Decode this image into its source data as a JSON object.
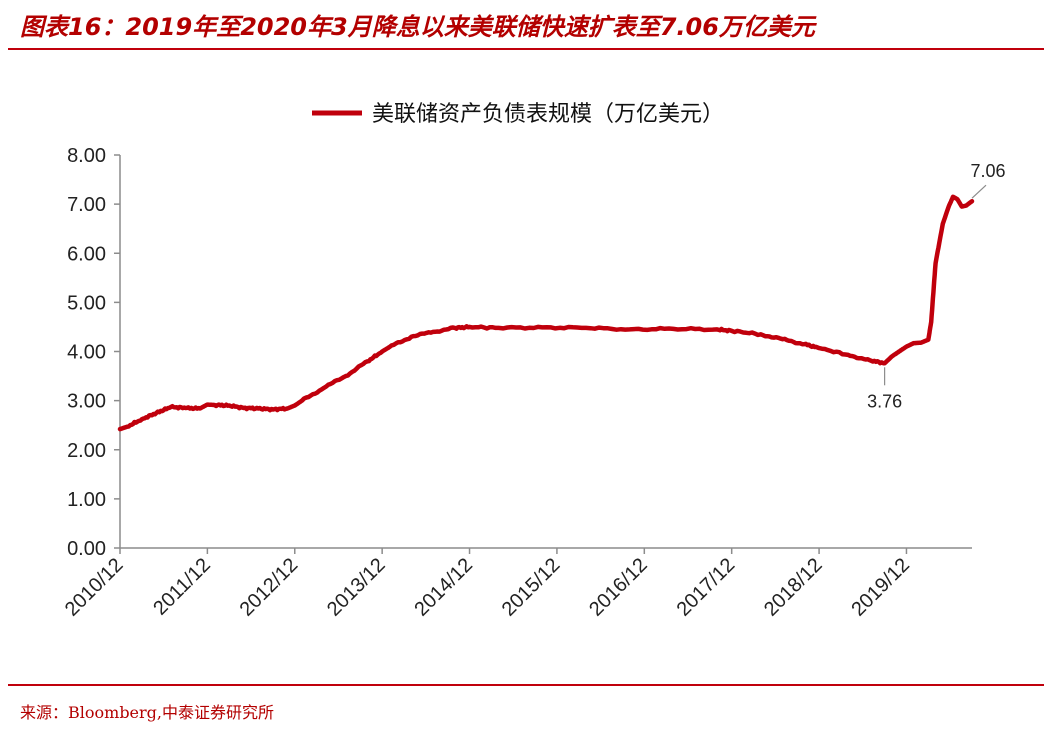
{
  "figure": {
    "title": "图表16：2019年至2020年3月降息以来美联储快速扩表至7.06万亿美元",
    "source": "来源：Bloomberg,中泰证券研究所",
    "accent_color": "#c0000c"
  },
  "chart_data": {
    "type": "line",
    "title": "",
    "xlabel": "",
    "ylabel": "",
    "ylim": [
      0,
      8
    ],
    "xlim": [
      2010.917,
      2020.667
    ],
    "y_ticks": [
      "0.00",
      "1.00",
      "2.00",
      "3.00",
      "4.00",
      "5.00",
      "6.00",
      "7.00",
      "8.00"
    ],
    "x_tick_labels": [
      "2010/12",
      "2011/12",
      "2012/12",
      "2013/12",
      "2014/12",
      "2015/12",
      "2016/12",
      "2017/12",
      "2018/12",
      "2019/12"
    ],
    "x_tick_values": [
      2010.917,
      2011.917,
      2012.917,
      2013.917,
      2014.917,
      2015.917,
      2016.917,
      2017.917,
      2018.917,
      2019.917
    ],
    "grid": false,
    "legend_position": "top-center",
    "series": [
      {
        "name": "美联储资产负债表规模（万亿美元）",
        "color": "#c0000c",
        "points": [
          [
            2010.917,
            2.42
          ],
          [
            2011.0,
            2.47
          ],
          [
            2011.167,
            2.62
          ],
          [
            2011.333,
            2.75
          ],
          [
            2011.5,
            2.87
          ],
          [
            2011.667,
            2.85
          ],
          [
            2011.833,
            2.84
          ],
          [
            2011.917,
            2.92
          ],
          [
            2012.0,
            2.91
          ],
          [
            2012.167,
            2.9
          ],
          [
            2012.333,
            2.85
          ],
          [
            2012.5,
            2.84
          ],
          [
            2012.667,
            2.82
          ],
          [
            2012.833,
            2.84
          ],
          [
            2012.917,
            2.9
          ],
          [
            2013.0,
            3.0
          ],
          [
            2013.25,
            3.26
          ],
          [
            2013.5,
            3.5
          ],
          [
            2013.75,
            3.8
          ],
          [
            2013.917,
            4.0
          ],
          [
            2014.0,
            4.09
          ],
          [
            2014.25,
            4.3
          ],
          [
            2014.5,
            4.4
          ],
          [
            2014.75,
            4.48
          ],
          [
            2014.917,
            4.5
          ],
          [
            2015.25,
            4.48
          ],
          [
            2015.75,
            4.49
          ],
          [
            2016.25,
            4.48
          ],
          [
            2016.75,
            4.45
          ],
          [
            2017.25,
            4.46
          ],
          [
            2017.75,
            4.45
          ],
          [
            2017.917,
            4.42
          ],
          [
            2018.25,
            4.35
          ],
          [
            2018.5,
            4.25
          ],
          [
            2018.75,
            4.15
          ],
          [
            2018.917,
            4.07
          ],
          [
            2019.25,
            3.93
          ],
          [
            2019.5,
            3.82
          ],
          [
            2019.667,
            3.76
          ],
          [
            2019.75,
            3.9
          ],
          [
            2019.833,
            4.0
          ],
          [
            2019.917,
            4.1
          ],
          [
            2020.0,
            4.17
          ],
          [
            2020.083,
            4.18
          ],
          [
            2020.167,
            4.24
          ],
          [
            2020.2,
            4.6
          ],
          [
            2020.25,
            5.8
          ],
          [
            2020.333,
            6.6
          ],
          [
            2020.4,
            6.95
          ],
          [
            2020.45,
            7.15
          ],
          [
            2020.5,
            7.1
          ],
          [
            2020.55,
            6.95
          ],
          [
            2020.6,
            6.97
          ],
          [
            2020.667,
            7.06
          ]
        ]
      }
    ],
    "annotations": [
      {
        "label": "3.76",
        "x": 2019.667,
        "y": 3.76
      },
      {
        "label": "7.06",
        "x": 2020.667,
        "y": 7.06
      }
    ]
  }
}
